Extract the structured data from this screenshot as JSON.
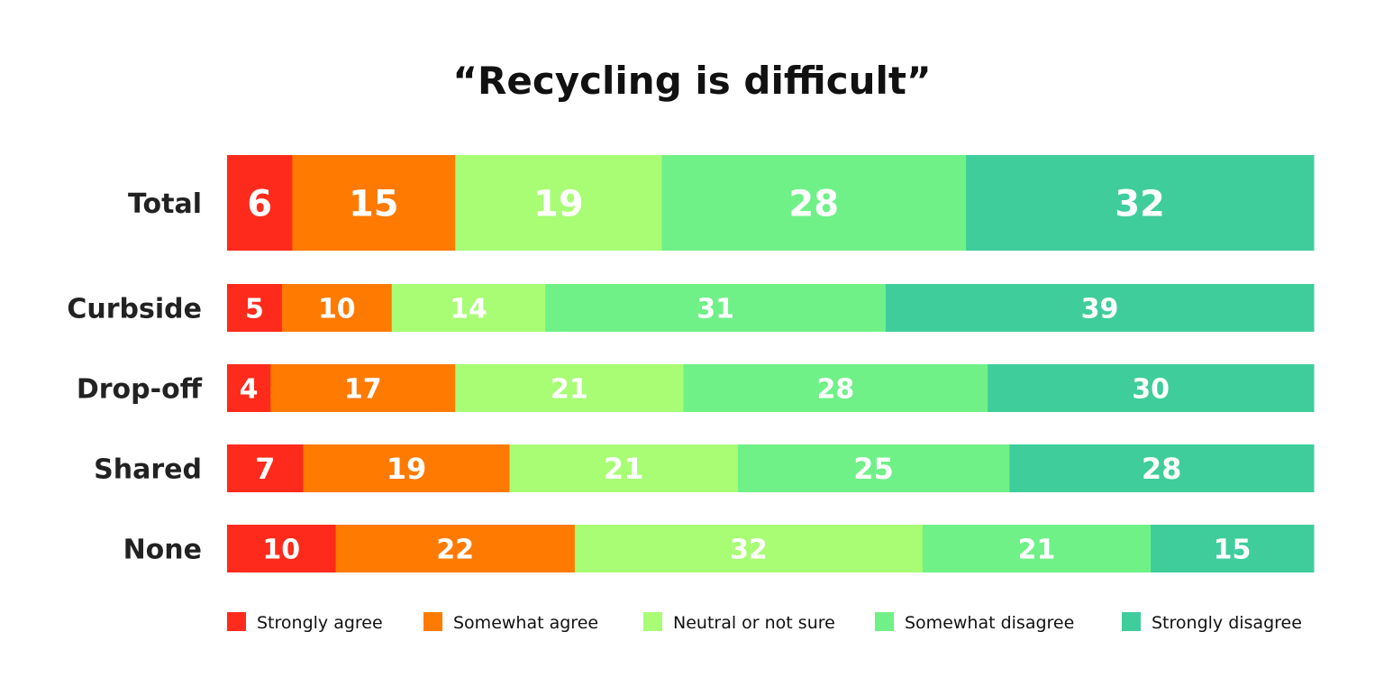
{
  "chart_data": {
    "type": "bar",
    "orientation": "horizontal",
    "stacked": true,
    "title": "“Recycling is difficult”",
    "categories": [
      "Total",
      "Curbside",
      "Drop-off",
      "Shared",
      "None"
    ],
    "series": [
      {
        "name": "Strongly agree",
        "color": "#fe2a1c",
        "values": [
          6,
          5,
          4,
          7,
          10
        ]
      },
      {
        "name": "Somewhat agree",
        "color": "#ff7a00",
        "values": [
          15,
          10,
          17,
          19,
          22
        ]
      },
      {
        "name": "Neutral or not sure",
        "color": "#a8fd74",
        "values": [
          19,
          14,
          21,
          21,
          32
        ]
      },
      {
        "name": "Somewhat disagree",
        "color": "#6ff187",
        "values": [
          28,
          31,
          28,
          25,
          21
        ]
      },
      {
        "name": "Strongly disagree",
        "color": "#3fcd9c",
        "values": [
          32,
          39,
          30,
          28,
          15
        ]
      }
    ],
    "data_labels": true,
    "legend_position": "bottom",
    "grid": false,
    "xlim": [
      0,
      100
    ]
  }
}
